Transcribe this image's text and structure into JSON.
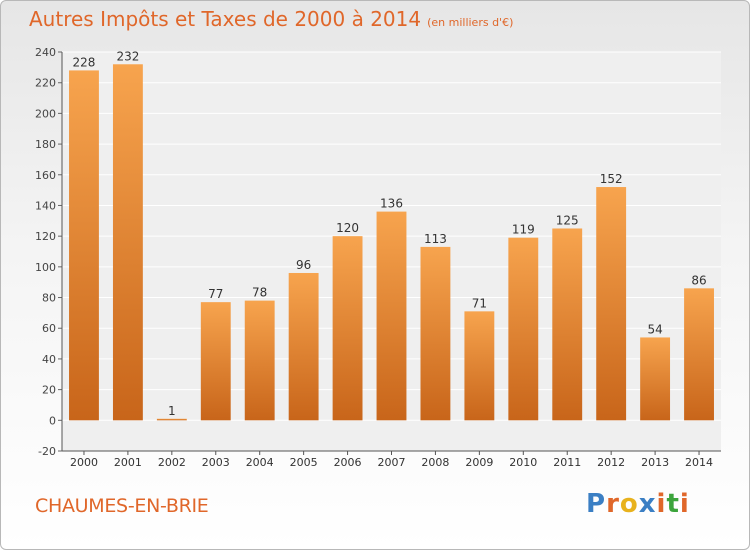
{
  "title": "Autres Impôts et Taxes de 2000 à 2014",
  "unit": "(en milliers d'€)",
  "place": "CHAUMES-EN-BRIE",
  "logo": {
    "text": "Proxiti",
    "colors": [
      "#3b7fc4",
      "#e0672a",
      "#e8b21d",
      "#3b7fc4",
      "#e0672a",
      "#3ca43c",
      "#e0672a"
    ]
  },
  "colors": {
    "bar_light": "#f7a44e",
    "bar_dark": "#c8651a",
    "accent": "#e0672a"
  },
  "chart_data": {
    "type": "bar",
    "categories": [
      "2000",
      "2001",
      "2002",
      "2003",
      "2004",
      "2005",
      "2006",
      "2007",
      "2008",
      "2009",
      "2010",
      "2011",
      "2012",
      "2013",
      "2014"
    ],
    "values": [
      228,
      232,
      1,
      77,
      78,
      96,
      120,
      136,
      113,
      71,
      119,
      125,
      152,
      54,
      86
    ],
    "ylim": [
      -20,
      240
    ],
    "yticks": [
      -20,
      0,
      20,
      40,
      60,
      80,
      100,
      120,
      140,
      160,
      180,
      200,
      220,
      240
    ],
    "grid": true,
    "xlabel": "",
    "ylabel": ""
  }
}
